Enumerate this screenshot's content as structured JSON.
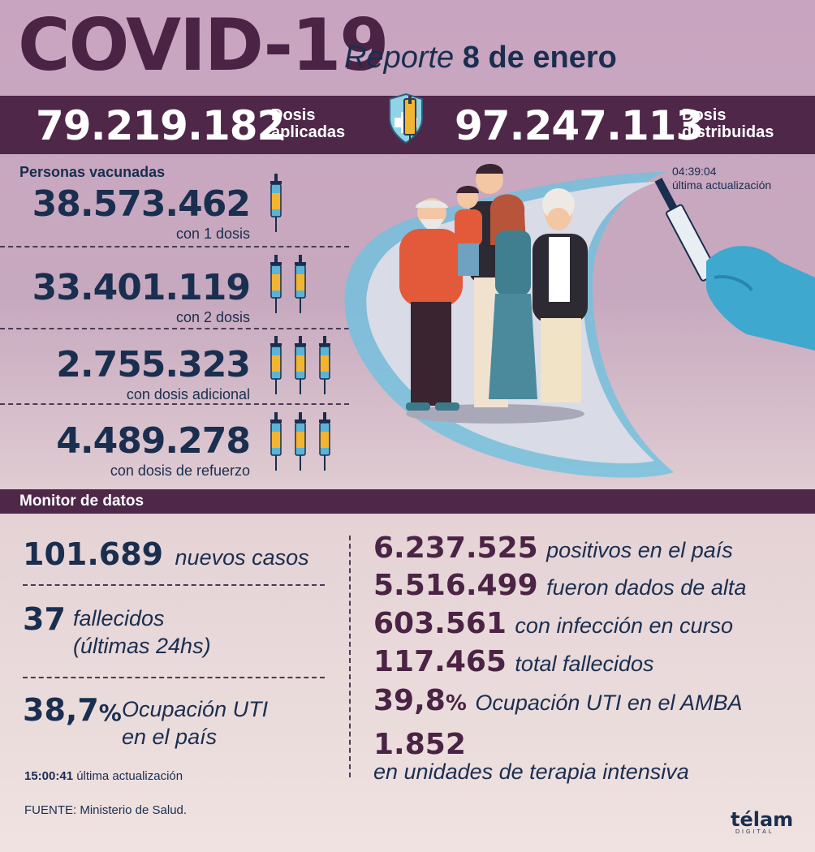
{
  "header": {
    "title": "COVID-19",
    "report_word": "Reporte",
    "report_date": "8 de enero"
  },
  "doses": {
    "applied_value": "79.219.182",
    "applied_label_1": "Dosis",
    "applied_label_2": "aplicadas",
    "distributed_value": "97.247.113",
    "distributed_label_1": "Dosis",
    "distributed_label_2": "distribuidas"
  },
  "vaccinated": {
    "heading": "Personas vacunadas",
    "rows": [
      {
        "value": "38.573.462",
        "label": "con 1 dosis",
        "syringes": 1
      },
      {
        "value": "33.401.119",
        "label": "con 2 dosis",
        "syringes": 2
      },
      {
        "value": "2.755.323",
        "label": "con dosis adicional",
        "syringes": 3
      },
      {
        "value": "4.489.278",
        "label": "con dosis de refuerzo",
        "syringes": 3
      }
    ],
    "update_time": "04:39:04",
    "update_label": "última actualización"
  },
  "monitor": {
    "heading": "Monitor de datos",
    "new_cases_value": "101.689",
    "new_cases_label": "nuevos casos",
    "deaths_value": "37",
    "deaths_label_1": "fallecidos",
    "deaths_label_2": "(últimas 24hs)",
    "icu_value": "38,7",
    "icu_pct": "%",
    "icu_label_1": "Ocupación UTI",
    "icu_label_2": "en el país",
    "update_time": "15:00:41",
    "update_label": "última actualización",
    "right": [
      {
        "value": "6.237.525",
        "label": "positivos en el país"
      },
      {
        "value": "5.516.499",
        "label": "fueron dados de alta"
      },
      {
        "value": "603.561",
        "label": "con infección en curso"
      },
      {
        "value": "117.465",
        "label": "total fallecidos"
      }
    ],
    "amba_value": "39,8",
    "amba_pct": "%",
    "amba_label": "Ocupación UTI en el AMBA",
    "icu_units_value": "1.852",
    "icu_units_label": "en unidades de terapia intensiva"
  },
  "footer": {
    "source": "FUENTE: Ministerio de Salud.",
    "brand": "télam",
    "brand_sub": "DIGITAL"
  },
  "colors": {
    "plum": "#4f2749",
    "navy": "#1a2e4f",
    "syringe_yellow": "#f2b531",
    "syringe_blue": "#5bb3d6"
  }
}
